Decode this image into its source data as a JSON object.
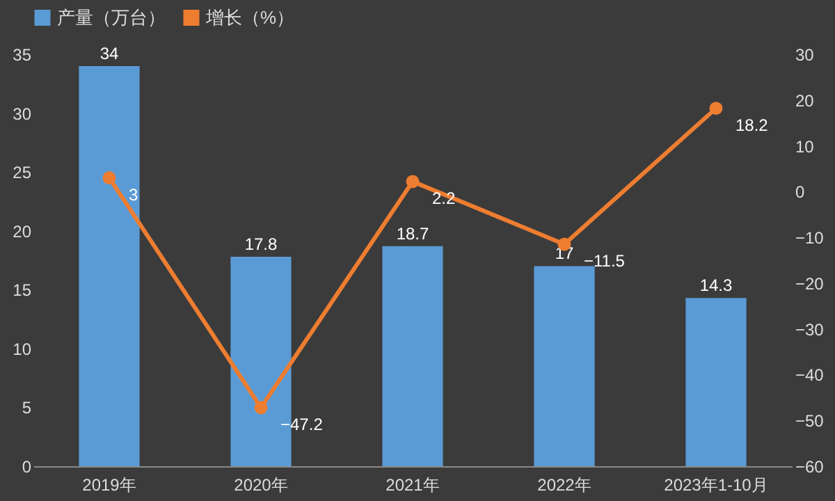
{
  "chart_data": {
    "type": "bar",
    "categories": [
      "2019年",
      "2020年",
      "2021年",
      "2022年",
      "2023年1-10月"
    ],
    "series": [
      {
        "name": "产量（万台）",
        "color": "#5b9bd5",
        "values": [
          34,
          17.8,
          18.7,
          17,
          14.3
        ]
      },
      {
        "name": "增长（%）",
        "type": "line",
        "axis": "y2",
        "color": "#ed7d31",
        "values": [
          3,
          -47.2,
          2.2,
          -11.5,
          18.2
        ]
      }
    ],
    "ylim": [
      0,
      35
    ],
    "yticks": [
      0,
      5,
      10,
      15,
      20,
      25,
      30,
      35
    ],
    "y2lim": [
      -60,
      30
    ],
    "y2ticks": [
      -60,
      -50,
      -40,
      -30,
      -20,
      -10,
      0,
      10,
      20,
      30
    ],
    "data_labels": true,
    "legend": "top",
    "marker": "circle",
    "line_style": "solid",
    "grid": false
  }
}
